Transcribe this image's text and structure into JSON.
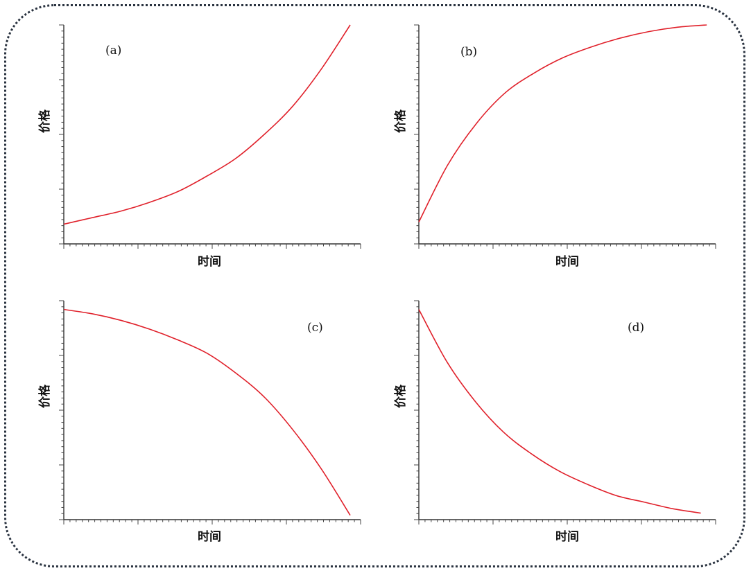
{
  "chart_data": [
    {
      "type": "line",
      "panel_label": "(a)",
      "xlabel": "时间",
      "ylabel": "价格",
      "xlim": [
        0,
        1
      ],
      "ylim": [
        0,
        1
      ],
      "series": [
        {
          "color": "#e0202a",
          "x": [
            0.0,
            0.1,
            0.2,
            0.3,
            0.4,
            0.5,
            0.6,
            0.7,
            0.8,
            0.9,
            1.0
          ],
          "y": [
            0.09,
            0.12,
            0.15,
            0.19,
            0.24,
            0.31,
            0.39,
            0.5,
            0.63,
            0.8,
            1.0
          ]
        }
      ]
    },
    {
      "type": "line",
      "panel_label": "(b)",
      "xlabel": "时间",
      "ylabel": "价格",
      "xlim": [
        0,
        1
      ],
      "ylim": [
        0,
        1
      ],
      "series": [
        {
          "color": "#e0202a",
          "x": [
            0.0,
            0.1,
            0.2,
            0.3,
            0.4,
            0.5,
            0.6,
            0.7,
            0.8,
            0.9,
            1.0
          ],
          "y": [
            0.1,
            0.36,
            0.55,
            0.69,
            0.78,
            0.85,
            0.9,
            0.94,
            0.97,
            0.99,
            1.0
          ]
        }
      ]
    },
    {
      "type": "line",
      "panel_label": "(c)",
      "xlabel": "时间",
      "ylabel": "价格",
      "xlim": [
        0,
        1
      ],
      "ylim": [
        0,
        1
      ],
      "series": [
        {
          "color": "#e0202a",
          "x": [
            0.0,
            0.1,
            0.2,
            0.3,
            0.4,
            0.5,
            0.6,
            0.7,
            0.8,
            0.9,
            1.0
          ],
          "y": [
            0.96,
            0.94,
            0.91,
            0.87,
            0.82,
            0.76,
            0.67,
            0.56,
            0.41,
            0.23,
            0.02
          ]
        }
      ]
    },
    {
      "type": "line",
      "panel_label": "(d)",
      "xlabel": "时间",
      "ylabel": "价格",
      "xlim": [
        0,
        1
      ],
      "ylim": [
        0,
        1
      ],
      "series": [
        {
          "color": "#e0202a",
          "x": [
            0.0,
            0.1,
            0.2,
            0.3,
            0.4,
            0.5,
            0.6,
            0.7,
            0.8,
            0.9,
            1.0
          ],
          "y": [
            0.96,
            0.72,
            0.54,
            0.4,
            0.3,
            0.22,
            0.16,
            0.11,
            0.08,
            0.05,
            0.03
          ]
        }
      ]
    }
  ]
}
